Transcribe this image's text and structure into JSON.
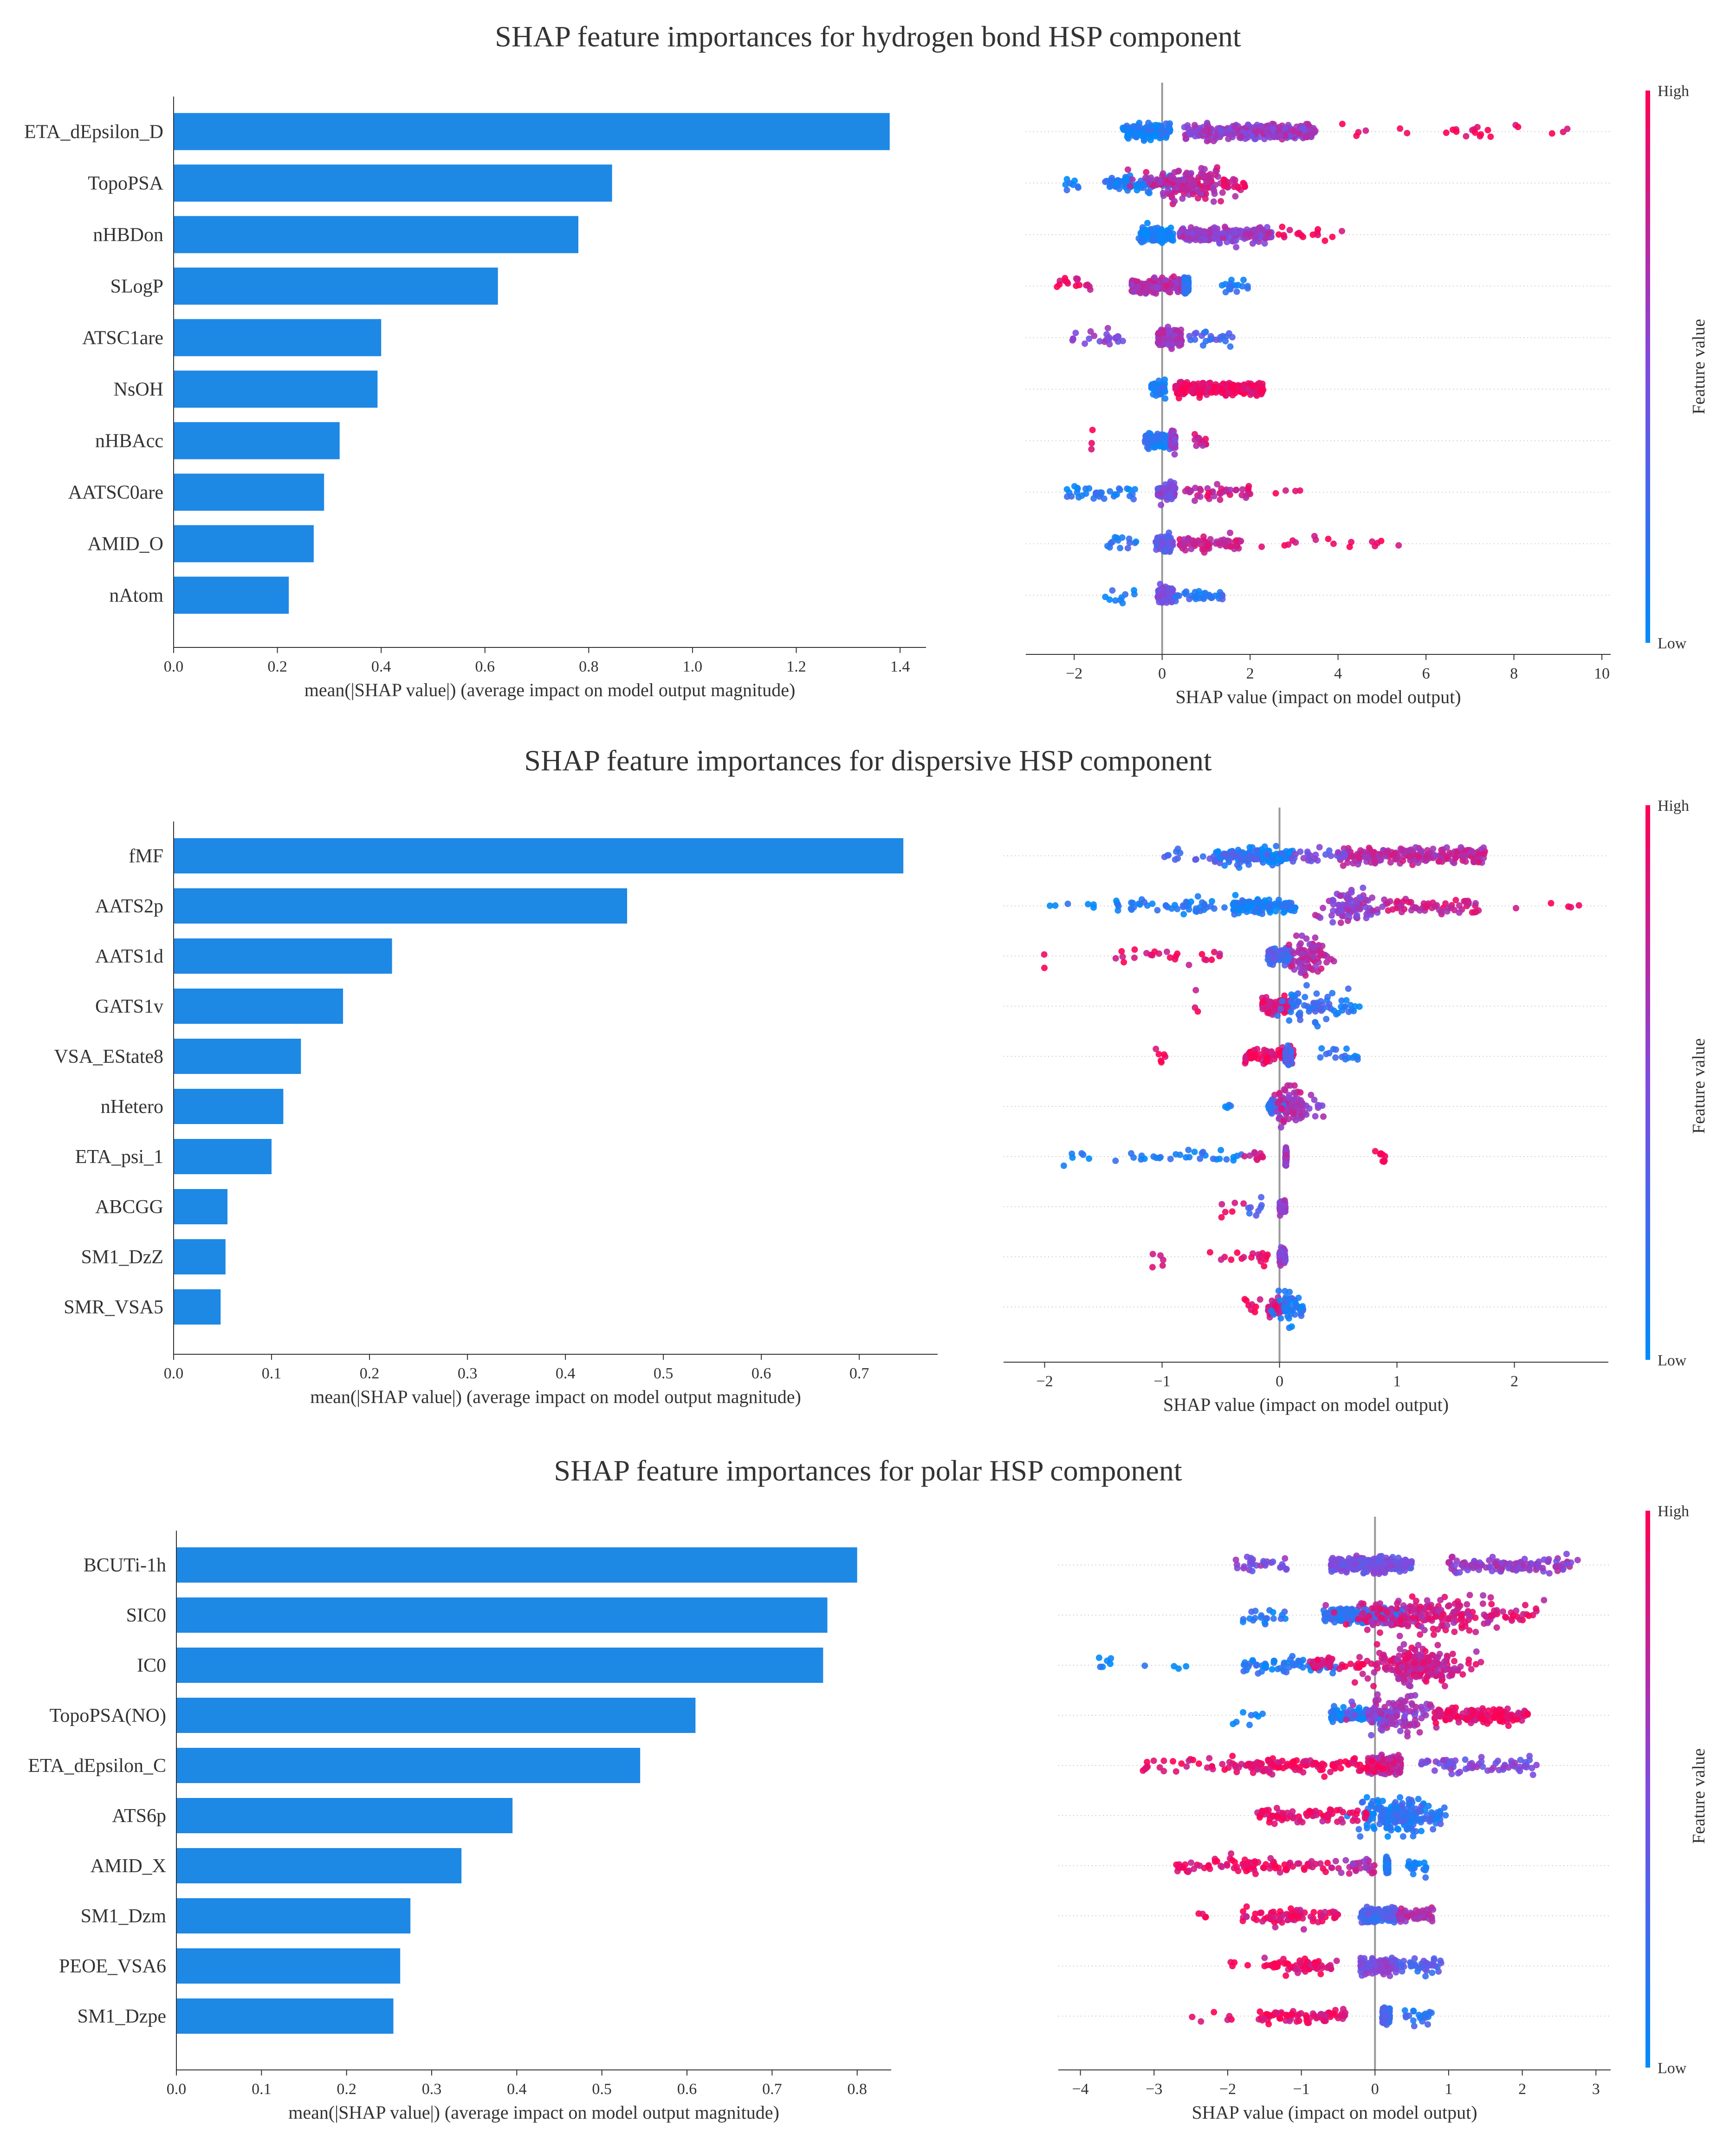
{
  "colors": {
    "bar": "#1e88e5",
    "axis": "#333333",
    "zero_line": "#999999",
    "row_line": "#cccccc",
    "low": "#008bfb",
    "mid": "#7f4be0",
    "high": "#ff0052"
  },
  "colorbar": {
    "high_label": "High",
    "low_label": "Low",
    "title": "Feature value"
  },
  "panels": [
    {
      "title": "SHAP feature importances for hydrogen bond HSP component"
    },
    {
      "title": "SHAP feature importances for dispersive HSP component"
    },
    {
      "title": "SHAP feature importances for polar HSP component"
    }
  ],
  "chart_data": [
    {
      "type": "bar",
      "panel": 0,
      "orientation": "horizontal",
      "categories": [
        "ETA_dEpsilon_D",
        "TopoPSA",
        "nHBDon",
        "SLogP",
        "ATSC1are",
        "NsOH",
        "nHBAcc",
        "AATSC0are",
        "AMID_O",
        "nAtom"
      ],
      "values": [
        1.38,
        0.845,
        0.78,
        0.625,
        0.4,
        0.393,
        0.32,
        0.29,
        0.27,
        0.222
      ],
      "xlabel": "mean(|SHAP value|) (average impact on model output magnitude)",
      "xlim": [
        0,
        1.45
      ],
      "xticks": [
        0.0,
        0.2,
        0.4,
        0.6,
        0.8,
        1.0,
        1.2,
        1.4
      ],
      "xtick_labels": [
        "0.0",
        "0.2",
        "0.4",
        "0.6",
        "0.8",
        "1.0",
        "1.2",
        "1.4"
      ]
    },
    {
      "type": "scatter",
      "subtype": "beeswarm",
      "panel": 0,
      "xlabel": "SHAP value (impact on model output)",
      "xlim": [
        -3.1,
        10.2
      ],
      "xticks": [
        -2,
        0,
        2,
        4,
        6,
        8,
        10
      ],
      "xtick_labels": [
        "−2",
        "0",
        "2",
        "4",
        "6",
        "8",
        "10"
      ],
      "rows": [
        {
          "feature": "ETA_dEpsilon_D",
          "clusters": [
            [
              -0.9,
              0.2,
              130,
              0.1
            ],
            [
              0.5,
              3.5,
              300,
              0.6
            ],
            [
              4,
              9.5,
              24,
              0.95
            ]
          ]
        },
        {
          "feature": "TopoPSA",
          "clusters": [
            [
              -1.3,
              0.6,
              130,
              0.12
            ],
            [
              -2.2,
              -1.8,
              8,
              0.08
            ],
            [
              0.7,
              0.5,
              150,
              0.75
            ],
            [
              1.3,
              1.9,
              12,
              0.9
            ]
          ]
        },
        {
          "feature": "nHBDon",
          "clusters": [
            [
              -0.55,
              0.25,
              110,
              0.1
            ],
            [
              0.4,
              2.5,
              200,
              0.6
            ],
            [
              2.6,
              4.3,
              16,
              0.95
            ]
          ]
        },
        {
          "feature": "SLogP",
          "clusters": [
            [
              -0.7,
              0.55,
              180,
              0.7
            ],
            [
              -2.5,
              -1.6,
              16,
              0.88
            ],
            [
              0.5,
              0.6,
              140,
              0.22
            ],
            [
              1.3,
              2.0,
              16,
              0.12
            ]
          ]
        },
        {
          "feature": "ATSC1are",
          "clusters": [
            [
              -0.1,
              0.45,
              200,
              0.65
            ],
            [
              -2.1,
              -0.8,
              22,
              0.55
            ],
            [
              0.6,
              1.6,
              24,
              0.3
            ]
          ]
        },
        {
          "feature": "NsOH",
          "clusters": [
            [
              -0.25,
              0.08,
              50,
              0.08
            ],
            [
              0.3,
              2.3,
              220,
              0.95
            ]
          ]
        },
        {
          "feature": "nHBAcc",
          "clusters": [
            [
              -0.4,
              0.18,
              80,
              0.12
            ],
            [
              0.2,
              0.3,
              80,
              0.55
            ],
            [
              0.7,
              1.0,
              12,
              0.8
            ],
            [
              -1.6,
              -1.6,
              3,
              0.95
            ]
          ]
        },
        {
          "feature": "AATSC0are",
          "clusters": [
            [
              -0.1,
              0.3,
              130,
              0.5
            ],
            [
              -2.2,
              -0.6,
              34,
              0.12
            ],
            [
              0.5,
              2.1,
              44,
              0.8
            ],
            [
              2.5,
              3.2,
              4,
              0.95
            ]
          ]
        },
        {
          "feature": "AMID_O",
          "clusters": [
            [
              -0.15,
              0.25,
              110,
              0.4
            ],
            [
              -1.3,
              -0.5,
              14,
              0.2
            ],
            [
              0.4,
              1.8,
              64,
              0.8
            ],
            [
              2.0,
              5.7,
              16,
              0.95
            ]
          ]
        },
        {
          "feature": "nAtom",
          "clusters": [
            [
              -0.1,
              0.25,
              130,
              0.5
            ],
            [
              -1.3,
              -0.6,
              10,
              0.12
            ],
            [
              0.3,
              1.4,
              34,
              0.2
            ]
          ]
        }
      ]
    },
    {
      "type": "bar",
      "panel": 1,
      "orientation": "horizontal",
      "categories": [
        "fMF",
        "AATS2p",
        "AATS1d",
        "GATS1v",
        "VSA_EState8",
        "nHetero",
        "ETA_psi_1",
        "ABCGG",
        "SM1_DzZ",
        "SMR_VSA5"
      ],
      "values": [
        0.745,
        0.463,
        0.223,
        0.173,
        0.13,
        0.112,
        0.1,
        0.055,
        0.053,
        0.048
      ],
      "xlabel": "mean(|SHAP value|) (average impact on model output magnitude)",
      "xlim": [
        0,
        0.78
      ],
      "xticks": [
        0.0,
        0.1,
        0.2,
        0.3,
        0.4,
        0.5,
        0.6,
        0.7
      ],
      "xtick_labels": [
        "0.0",
        "0.1",
        "0.2",
        "0.3",
        "0.4",
        "0.5",
        "0.6",
        "0.7"
      ]
    },
    {
      "type": "scatter",
      "subtype": "beeswarm",
      "panel": 1,
      "xlabel": "SHAP value (impact on model output)",
      "xlim": [
        -2.35,
        2.8
      ],
      "xticks": [
        -2,
        -1,
        0,
        1,
        2
      ],
      "xtick_labels": [
        "−2",
        "−1",
        "0",
        "1",
        "2"
      ],
      "rows": [
        {
          "feature": "fMF",
          "clusters": [
            [
              -0.55,
              0.12,
              130,
              0.08
            ],
            [
              -1.0,
              -0.1,
              40,
              0.3
            ],
            [
              0.5,
              1.75,
              240,
              0.72
            ],
            [
              0.1,
              0.6,
              26,
              0.45
            ]
          ]
        },
        {
          "feature": "AATS2p",
          "clusters": [
            [
              -0.4,
              0.14,
              110,
              0.1
            ],
            [
              -1.4,
              -0.1,
              60,
              0.12
            ],
            [
              -2.1,
              -1.5,
              6,
              0.05
            ],
            [
              0.6,
              0.12,
              90,
              0.6
            ],
            [
              0.9,
              1.7,
              60,
              0.8
            ],
            [
              2.0,
              2.55,
              5,
              0.95
            ]
          ]
        },
        {
          "feature": "AATS1d",
          "clusters": [
            [
              -0.1,
              0.1,
              110,
              0.3
            ],
            [
              0.25,
              0.08,
              80,
              0.7
            ],
            [
              -1.4,
              -0.5,
              24,
              0.9
            ],
            [
              -2.0,
              -2.0,
              2,
              0.95
            ]
          ]
        },
        {
          "feature": "GATS1v",
          "clusters": [
            [
              -0.15,
              0.1,
              110,
              0.85
            ],
            [
              0.3,
              0.12,
              60,
              0.2
            ],
            [
              0.5,
              0.7,
              10,
              0.12
            ],
            [
              -0.7,
              -0.7,
              3,
              0.9
            ]
          ]
        },
        {
          "feature": "VSA_EState8",
          "clusters": [
            [
              -0.3,
              0.12,
              80,
              0.9
            ],
            [
              0.05,
              0.1,
              90,
              0.25
            ],
            [
              0.3,
              0.7,
              16,
              0.12
            ],
            [
              -1.1,
              -0.95,
              6,
              0.95
            ]
          ]
        },
        {
          "feature": "nHetero",
          "clusters": [
            [
              -0.1,
              0.08,
              70,
              0.2
            ],
            [
              0.1,
              0.07,
              70,
              0.7
            ],
            [
              0.2,
              0.4,
              10,
              0.6
            ],
            [
              -0.5,
              -0.4,
              4,
              0.1
            ]
          ]
        },
        {
          "feature": "ETA_psi_1",
          "clusters": [
            [
              0.05,
              0.06,
              80,
              0.6
            ],
            [
              -1.4,
              -0.3,
              30,
              0.1
            ],
            [
              -1.9,
              -1.6,
              6,
              0.05
            ],
            [
              0.8,
              0.95,
              8,
              0.95
            ],
            [
              -0.3,
              -0.1,
              10,
              0.8
            ]
          ]
        },
        {
          "feature": "ABCGG",
          "clusters": [
            [
              0.0,
              0.05,
              90,
              0.55
            ],
            [
              -0.3,
              -0.1,
              8,
              0.3
            ],
            [
              -0.5,
              -0.3,
              6,
              0.9
            ]
          ]
        },
        {
          "feature": "SM1_DzZ",
          "clusters": [
            [
              0.0,
              0.05,
              90,
              0.55
            ],
            [
              -0.6,
              -0.1,
              18,
              0.92
            ],
            [
              -1.1,
              -0.95,
              5,
              0.95
            ]
          ]
        },
        {
          "feature": "SMR_VSA5",
          "clusters": [
            [
              -0.1,
              0.05,
              60,
              0.85
            ],
            [
              0.1,
              0.06,
              40,
              0.15
            ],
            [
              -0.3,
              -0.15,
              8,
              0.9
            ],
            [
              0.15,
              0.2,
              6,
              0.1
            ]
          ]
        }
      ]
    },
    {
      "type": "bar",
      "panel": 2,
      "orientation": "horizontal",
      "categories": [
        "BCUTi-1h",
        "SIC0",
        "IC0",
        "TopoPSA(NO)",
        "ETA_dEpsilon_C",
        "ATS6p",
        "AMID_X",
        "SM1_Dzm",
        "PEOE_VSA6",
        "SM1_Dzpe"
      ],
      "values": [
        0.8,
        0.765,
        0.76,
        0.61,
        0.545,
        0.395,
        0.335,
        0.275,
        0.263,
        0.255
      ],
      "xlabel": "mean(|SHAP value|) (average impact on model output magnitude)",
      "xlim": [
        0,
        0.84
      ],
      "xticks": [
        0.0,
        0.1,
        0.2,
        0.3,
        0.4,
        0.5,
        0.6,
        0.7,
        0.8
      ],
      "xtick_labels": [
        "0.0",
        "0.1",
        "0.2",
        "0.3",
        "0.4",
        "0.5",
        "0.6",
        "0.7",
        "0.8"
      ]
    },
    {
      "type": "scatter",
      "subtype": "beeswarm",
      "panel": 2,
      "xlabel": "SHAP value (impact on model output)",
      "xlim": [
        -4.3,
        3.2
      ],
      "xticks": [
        -4,
        -3,
        -2,
        -1,
        0,
        1,
        2,
        3
      ],
      "xtick_labels": [
        "−4",
        "−3",
        "−2",
        "−1",
        "0",
        "1",
        "2",
        "3"
      ],
      "rows": [
        {
          "feature": "BCUTi-1h",
          "clusters": [
            [
              -0.6,
              0.5,
              260,
              0.45
            ],
            [
              1.0,
              2.8,
              120,
              0.6
            ],
            [
              -1.9,
              -1.2,
              30,
              0.5
            ]
          ]
        },
        {
          "feature": "SIC0",
          "clusters": [
            [
              -0.7,
              0.4,
              200,
              0.2
            ],
            [
              0.7,
              0.5,
              200,
              0.8
            ],
            [
              -1.8,
              -1.2,
              20,
              0.15
            ],
            [
              1.5,
              2.2,
              20,
              0.9
            ]
          ]
        },
        {
          "feature": "IC0",
          "clusters": [
            [
              0.6,
              0.3,
              220,
              0.8
            ],
            [
              -1.8,
              -0.5,
              60,
              0.12
            ],
            [
              -3.9,
              -2.5,
              10,
              0.05
            ],
            [
              -0.9,
              -0.1,
              40,
              0.9
            ]
          ]
        },
        {
          "feature": "TopoPSA(NO)",
          "clusters": [
            [
              -0.6,
              0.25,
              110,
              0.12
            ],
            [
              0.3,
              0.3,
              120,
              0.6
            ],
            [
              0.8,
              2.1,
              140,
              0.9
            ],
            [
              -2.0,
              -1.5,
              8,
              0.05
            ]
          ]
        },
        {
          "feature": "ETA_dEpsilon_C",
          "clusters": [
            [
              -0.1,
              0.35,
              280,
              0.75
            ],
            [
              -1.8,
              0.14,
              100,
              0.95
            ],
            [
              -3.2,
              -1.3,
              50,
              0.92
            ],
            [
              0.6,
              2.2,
              70,
              0.5
            ]
          ]
        },
        {
          "feature": "ATS6p",
          "clusters": [
            [
              0.3,
              0.25,
              160,
              0.12
            ],
            [
              -1.6,
              -0.1,
              80,
              0.88
            ],
            [
              0.2,
              0.9,
              50,
              0.2
            ]
          ]
        },
        {
          "feature": "AMID_X",
          "clusters": [
            [
              0.15,
              0.18,
              140,
              0.1
            ],
            [
              -2.7,
              -0.6,
              90,
              0.92
            ],
            [
              -0.6,
              0.0,
              30,
              0.7
            ],
            [
              0.4,
              0.7,
              20,
              0.12
            ]
          ]
        },
        {
          "feature": "SM1_Dzm",
          "clusters": [
            [
              -0.2,
              0.3,
              160,
              0.3
            ],
            [
              -1.8,
              -0.5,
              80,
              0.9
            ],
            [
              0.3,
              0.8,
              50,
              0.7
            ],
            [
              -2.4,
              -2.2,
              4,
              0.95
            ]
          ]
        },
        {
          "feature": "PEOE_VSA6",
          "clusters": [
            [
              -0.2,
              0.3,
              160,
              0.5
            ],
            [
              -1.5,
              -0.5,
              60,
              0.9
            ],
            [
              0.3,
              0.9,
              40,
              0.3
            ],
            [
              -2.0,
              -1.7,
              4,
              0.95
            ]
          ]
        },
        {
          "feature": "SM1_Dzpe",
          "clusters": [
            [
              0.1,
              0.2,
              140,
              0.25
            ],
            [
              -1.6,
              -0.4,
              70,
              0.92
            ],
            [
              -2.5,
              -1.9,
              6,
              0.95
            ],
            [
              0.4,
              0.8,
              20,
              0.2
            ]
          ]
        }
      ]
    }
  ]
}
